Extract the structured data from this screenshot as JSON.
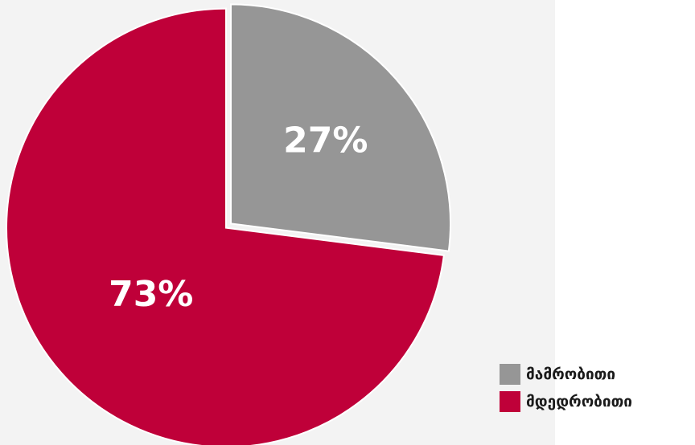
{
  "chart_data": {
    "type": "pie",
    "slices": [
      {
        "label": "მამრობითი",
        "value": 27,
        "display": "27%",
        "color": "#969696"
      },
      {
        "label": "მდედრობითი",
        "value": 73,
        "display": "73%",
        "color": "#bf0039"
      }
    ],
    "legend_position": "bottom-right"
  }
}
